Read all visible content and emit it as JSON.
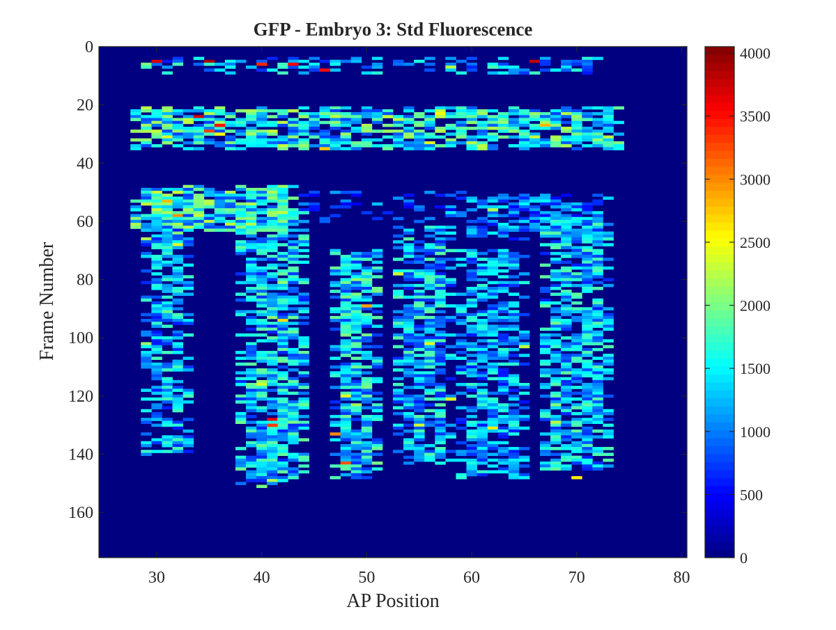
{
  "chart_data": {
    "type": "heatmap",
    "title": "GFP - Embryo 3: Std Fluorescence",
    "xlabel": "AP Position",
    "ylabel": "Frame Number",
    "xlim": [
      24.5,
      80.5
    ],
    "ylim": [
      0,
      175.5
    ],
    "y_reversed": true,
    "x_ticks": [
      30,
      40,
      50,
      60,
      70,
      80
    ],
    "y_ticks": [
      0,
      20,
      40,
      60,
      80,
      100,
      120,
      140,
      160
    ],
    "colorbar": {
      "min": 0,
      "max": 4050,
      "ticks": [
        0,
        500,
        1000,
        1500,
        2000,
        2500,
        3000,
        3500,
        4000
      ],
      "colormap": "jet"
    },
    "background_value": 0,
    "x_bin_width": 1,
    "y_bin_height": 1,
    "regions": [
      {
        "x_range": [
          29,
          73
        ],
        "frames": [
          4,
          9
        ],
        "mean": 1300,
        "density": 0.45
      },
      {
        "x_range": [
          28,
          74
        ],
        "frames": [
          21,
          35
        ],
        "mean": 1650,
        "density": 0.75
      },
      {
        "x_range": [
          28,
          43
        ],
        "frames": [
          48,
          63
        ],
        "mean": 1650,
        "density": 0.85
      },
      {
        "x_range": [
          44,
          60
        ],
        "frames": [
          49,
          60
        ],
        "mean": 900,
        "density": 0.3
      },
      {
        "x_range": [
          60,
          73
        ],
        "frames": [
          51,
          66
        ],
        "mean": 1100,
        "density": 0.6
      },
      {
        "x_range": [
          29,
          33
        ],
        "frames": [
          60,
          140
        ],
        "mean": 1300,
        "density": 0.7
      },
      {
        "x_range": [
          38,
          44
        ],
        "frames": [
          56,
          150
        ],
        "mean": 1400,
        "density": 0.75
      },
      {
        "x_range": [
          47,
          51
        ],
        "frames": [
          70,
          148
        ],
        "mean": 1450,
        "density": 0.8
      },
      {
        "x_range": [
          53,
          58
        ],
        "frames": [
          62,
          143
        ],
        "mean": 1350,
        "density": 0.75
      },
      {
        "x_range": [
          59,
          65
        ],
        "frames": [
          70,
          148
        ],
        "mean": 1250,
        "density": 0.7
      },
      {
        "x_range": [
          67,
          73
        ],
        "frames": [
          58,
          145
        ],
        "mean": 1350,
        "density": 0.75
      }
    ],
    "hotspots": [
      {
        "x": 30,
        "y": 5,
        "value": 3700
      },
      {
        "x": 35,
        "y": 5,
        "value": 3900
      },
      {
        "x": 40,
        "y": 6,
        "value": 3400
      },
      {
        "x": 43,
        "y": 6,
        "value": 3600
      },
      {
        "x": 46,
        "y": 8,
        "value": 3500
      },
      {
        "x": 66,
        "y": 5,
        "value": 3800
      },
      {
        "x": 34,
        "y": 24,
        "value": 3700
      },
      {
        "x": 36,
        "y": 27,
        "value": 3500
      },
      {
        "x": 35,
        "y": 29,
        "value": 3300
      },
      {
        "x": 31,
        "y": 53,
        "value": 2800
      },
      {
        "x": 41,
        "y": 128,
        "value": 3600
      },
      {
        "x": 41,
        "y": 130,
        "value": 3300
      },
      {
        "x": 50,
        "y": 89,
        "value": 2900
      },
      {
        "x": 48,
        "y": 143,
        "value": 3200
      },
      {
        "x": 47,
        "y": 133,
        "value": 3000
      },
      {
        "x": 56,
        "y": 102,
        "value": 2400
      },
      {
        "x": 62,
        "y": 56,
        "value": 2200
      },
      {
        "x": 70,
        "y": 148,
        "value": 2600
      },
      {
        "x": 40,
        "y": 151,
        "value": 2000
      }
    ]
  }
}
